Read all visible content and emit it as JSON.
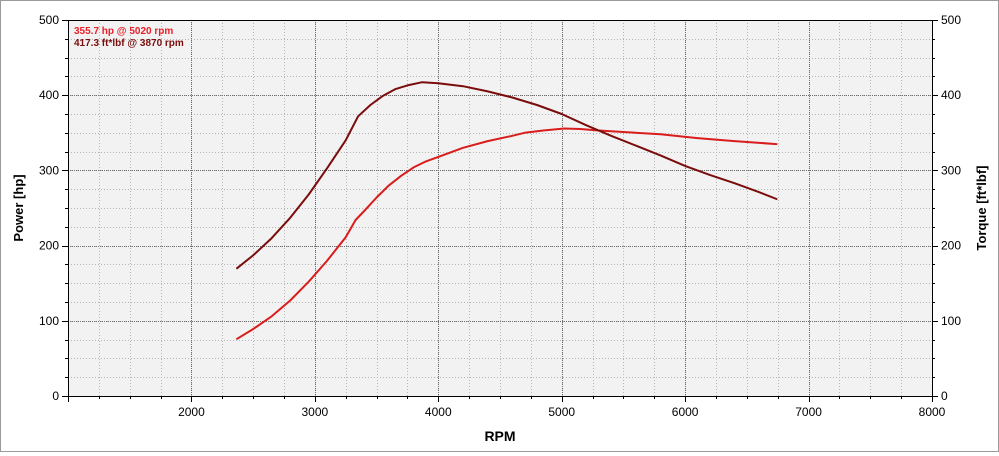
{
  "chart_data": {
    "type": "line",
    "xlabel": "RPM",
    "ylabel_left": "Power [hp]",
    "ylabel_right": "Torque [ft*lbf]",
    "xlim": [
      1000,
      8000
    ],
    "ylim": [
      0,
      500
    ],
    "x_ticks": [
      2000,
      3000,
      4000,
      5000,
      6000,
      7000,
      8000
    ],
    "y_ticks": [
      0,
      100,
      200,
      300,
      400,
      500
    ],
    "grid": true,
    "legend_position": "top-left",
    "annotations": [
      {
        "text": "355.7 hp @ 5020 rpm",
        "color": "#e8202a"
      },
      {
        "text": "417.3 ft*lbf @ 3870 rpm",
        "color": "#7a0c0c"
      }
    ],
    "series": [
      {
        "key": "power",
        "color": "#d91c1c",
        "points": [
          [
            2370,
            76
          ],
          [
            2500,
            89
          ],
          [
            2650,
            106
          ],
          [
            2800,
            127
          ],
          [
            2950,
            152
          ],
          [
            3100,
            180
          ],
          [
            3250,
            211
          ],
          [
            3330,
            234
          ],
          [
            3400,
            246
          ],
          [
            3500,
            264
          ],
          [
            3600,
            280
          ],
          [
            3700,
            293
          ],
          [
            3800,
            304
          ],
          [
            3900,
            312
          ],
          [
            4000,
            318
          ],
          [
            4200,
            330
          ],
          [
            4400,
            339
          ],
          [
            4600,
            346
          ],
          [
            4700,
            350
          ],
          [
            4850,
            353
          ],
          [
            5020,
            355.7
          ],
          [
            5150,
            355
          ],
          [
            5300,
            353
          ],
          [
            5500,
            351
          ],
          [
            5800,
            348
          ],
          [
            6100,
            343
          ],
          [
            6400,
            339
          ],
          [
            6740,
            335
          ]
        ]
      },
      {
        "key": "torque",
        "color": "#7a0c0c",
        "points": [
          [
            2370,
            170
          ],
          [
            2500,
            187
          ],
          [
            2650,
            210
          ],
          [
            2800,
            237
          ],
          [
            2950,
            268
          ],
          [
            3100,
            303
          ],
          [
            3250,
            340
          ],
          [
            3350,
            372
          ],
          [
            3450,
            387
          ],
          [
            3550,
            399
          ],
          [
            3650,
            408
          ],
          [
            3750,
            413
          ],
          [
            3870,
            417.3
          ],
          [
            4000,
            416
          ],
          [
            4200,
            412
          ],
          [
            4400,
            405
          ],
          [
            4600,
            397
          ],
          [
            4800,
            387
          ],
          [
            5000,
            375
          ],
          [
            5200,
            360
          ],
          [
            5400,
            346
          ],
          [
            5600,
            333
          ],
          [
            5800,
            320
          ],
          [
            6000,
            306
          ],
          [
            6200,
            294
          ],
          [
            6400,
            283
          ],
          [
            6600,
            271
          ],
          [
            6740,
            262
          ]
        ]
      }
    ]
  }
}
